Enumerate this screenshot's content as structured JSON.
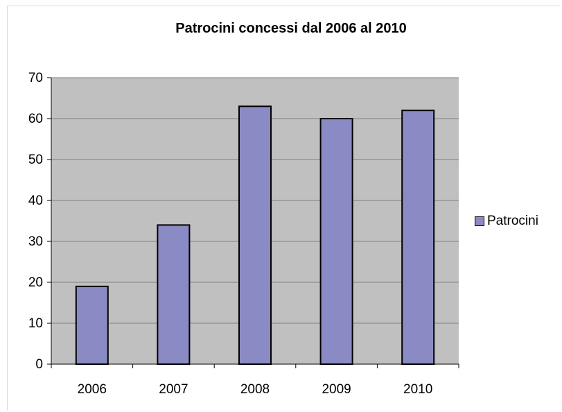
{
  "chart_data": {
    "type": "bar",
    "title": "Patrocini concessi dal 2006 al 2010",
    "categories": [
      "2006",
      "2007",
      "2008",
      "2009",
      "2010"
    ],
    "series": [
      {
        "name": "Patrocini",
        "values": [
          19,
          34,
          63,
          60,
          62
        ]
      }
    ],
    "ylim": [
      0,
      70
    ],
    "yticks": [
      "0",
      "10",
      "20",
      "30",
      "40",
      "50",
      "60",
      "70"
    ],
    "xlabel": "",
    "ylabel": "",
    "grid": true,
    "legend_position": "right",
    "colors": {
      "bar": "#8a8ac4",
      "plot_bg": "#c0c0c0",
      "grid": "#7f7f7f",
      "outline": "#000000"
    }
  }
}
